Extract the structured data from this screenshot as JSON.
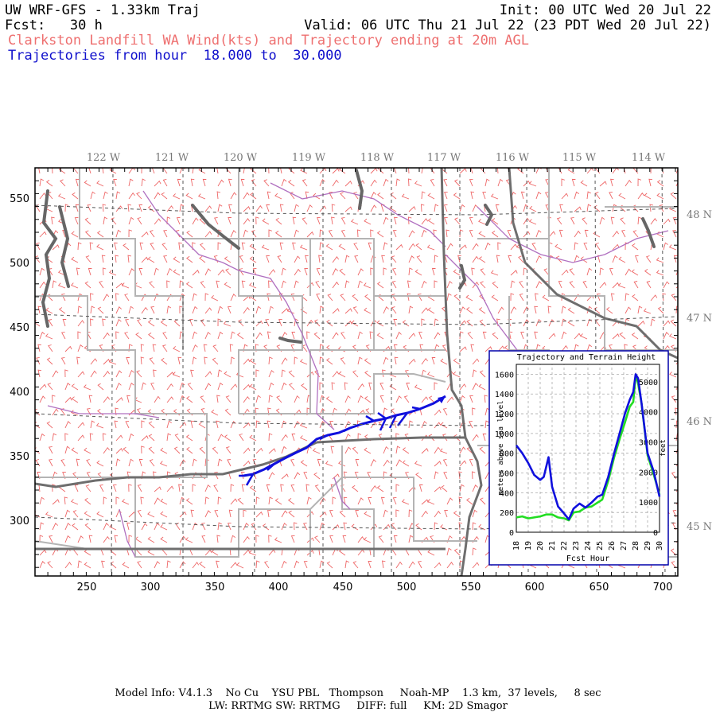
{
  "header": {
    "title": "UW WRF-GFS - 1.33km Traj",
    "init": "Init: 00 UTC Wed 20 Jul 22",
    "fcst": "Fcst:   30 h",
    "valid": "Valid: 06 UTC Thu 21 Jul 22 (23 PDT Wed 20 Jul 22)",
    "subtitle": "Clarkston Landfill WA Wind(kts) and Trajectory ending at 20m AGL",
    "trajectory_hours": "Trajectories from hour  18.000 to  30.000"
  },
  "map": {
    "lon_labels": [
      "122 W",
      "121 W",
      "120 W",
      "119 W",
      "118 W",
      "117 W",
      "116 W",
      "115 W",
      "114 W"
    ],
    "lat_labels": [
      "48 N",
      "47 N",
      "46 N",
      "45 N"
    ],
    "x_ticks": [
      "250",
      "300",
      "350",
      "400",
      "450",
      "500",
      "550",
      "600",
      "650",
      "700"
    ],
    "y_ticks": [
      "550",
      "500",
      "450",
      "400",
      "350",
      "300"
    ],
    "colors": {
      "wind_barbs": "#ee6666",
      "trajectory": "#1010dd",
      "state_border": "#707070",
      "county_border": "#b0b0b0",
      "river": "#b070c0",
      "water_coast": "#606060"
    }
  },
  "inset": {
    "title": "Trajectory and Terrain Height",
    "xlabel": "Fcst Hour",
    "ylabel_left": "meters above sea level",
    "ylabel_right": "feet",
    "x_ticks": [
      "18",
      "19",
      "20",
      "21",
      "22",
      "23",
      "24",
      "25",
      "26",
      "27",
      "28",
      "29",
      "30"
    ],
    "y_ticks_m": [
      "1600",
      "1400",
      "1200",
      "1000",
      "800",
      "600",
      "400",
      "200",
      "0"
    ],
    "y_ticks_ft": [
      "5000",
      "4000",
      "3000",
      "2000",
      "1000",
      "0"
    ]
  },
  "chart_data": {
    "type": "line",
    "title": "Trajectory and Terrain Height",
    "xlabel": "Fcst Hour",
    "ylabel": "meters above sea level",
    "xlim": [
      18,
      30
    ],
    "ylim": [
      0,
      1700
    ],
    "series": [
      {
        "name": "trajectory height",
        "color": "#1010dd",
        "x": [
          18.0,
          18.5,
          19.0,
          19.5,
          20.0,
          20.3,
          20.7,
          21.0,
          21.5,
          22.0,
          22.4,
          22.8,
          23.3,
          23.8,
          24.3,
          24.8,
          25.2,
          25.7,
          26.2,
          26.7,
          27.1,
          27.5,
          27.8,
          28.0,
          28.2,
          28.5,
          29.0,
          29.5,
          30.0
        ],
        "y": [
          880,
          800,
          700,
          580,
          530,
          560,
          760,
          460,
          260,
          190,
          130,
          240,
          290,
          250,
          300,
          360,
          380,
          560,
          800,
          1020,
          1200,
          1340,
          1420,
          1600,
          1560,
          1300,
          800,
          620,
          360
        ]
      },
      {
        "name": "terrain height",
        "color": "#22dd22",
        "x": [
          18.0,
          18.5,
          19.0,
          19.5,
          20.0,
          20.5,
          21.0,
          21.5,
          22.0,
          22.4,
          22.8,
          23.3,
          23.8,
          24.3,
          24.8,
          25.2,
          25.7,
          26.2,
          26.7,
          27.1,
          27.5,
          27.8,
          28.0,
          28.2,
          28.5,
          29.0,
          29.5,
          30.0
        ],
        "y": [
          150,
          160,
          140,
          150,
          160,
          180,
          180,
          150,
          140,
          120,
          200,
          210,
          250,
          260,
          300,
          330,
          520,
          760,
          960,
          1110,
          1270,
          1320,
          1590,
          1510,
          1300,
          780,
          590,
          380
        ]
      }
    ]
  },
  "footer": {
    "line1": "Model Info: V4.1.3    No Cu    YSU PBL   Thompson     Noah-MP    1.3 km,  37 levels,     8 sec",
    "line2": "LW: RRTMG SW: RRTMG     DIFF: full     KM: 2D Smagor"
  }
}
